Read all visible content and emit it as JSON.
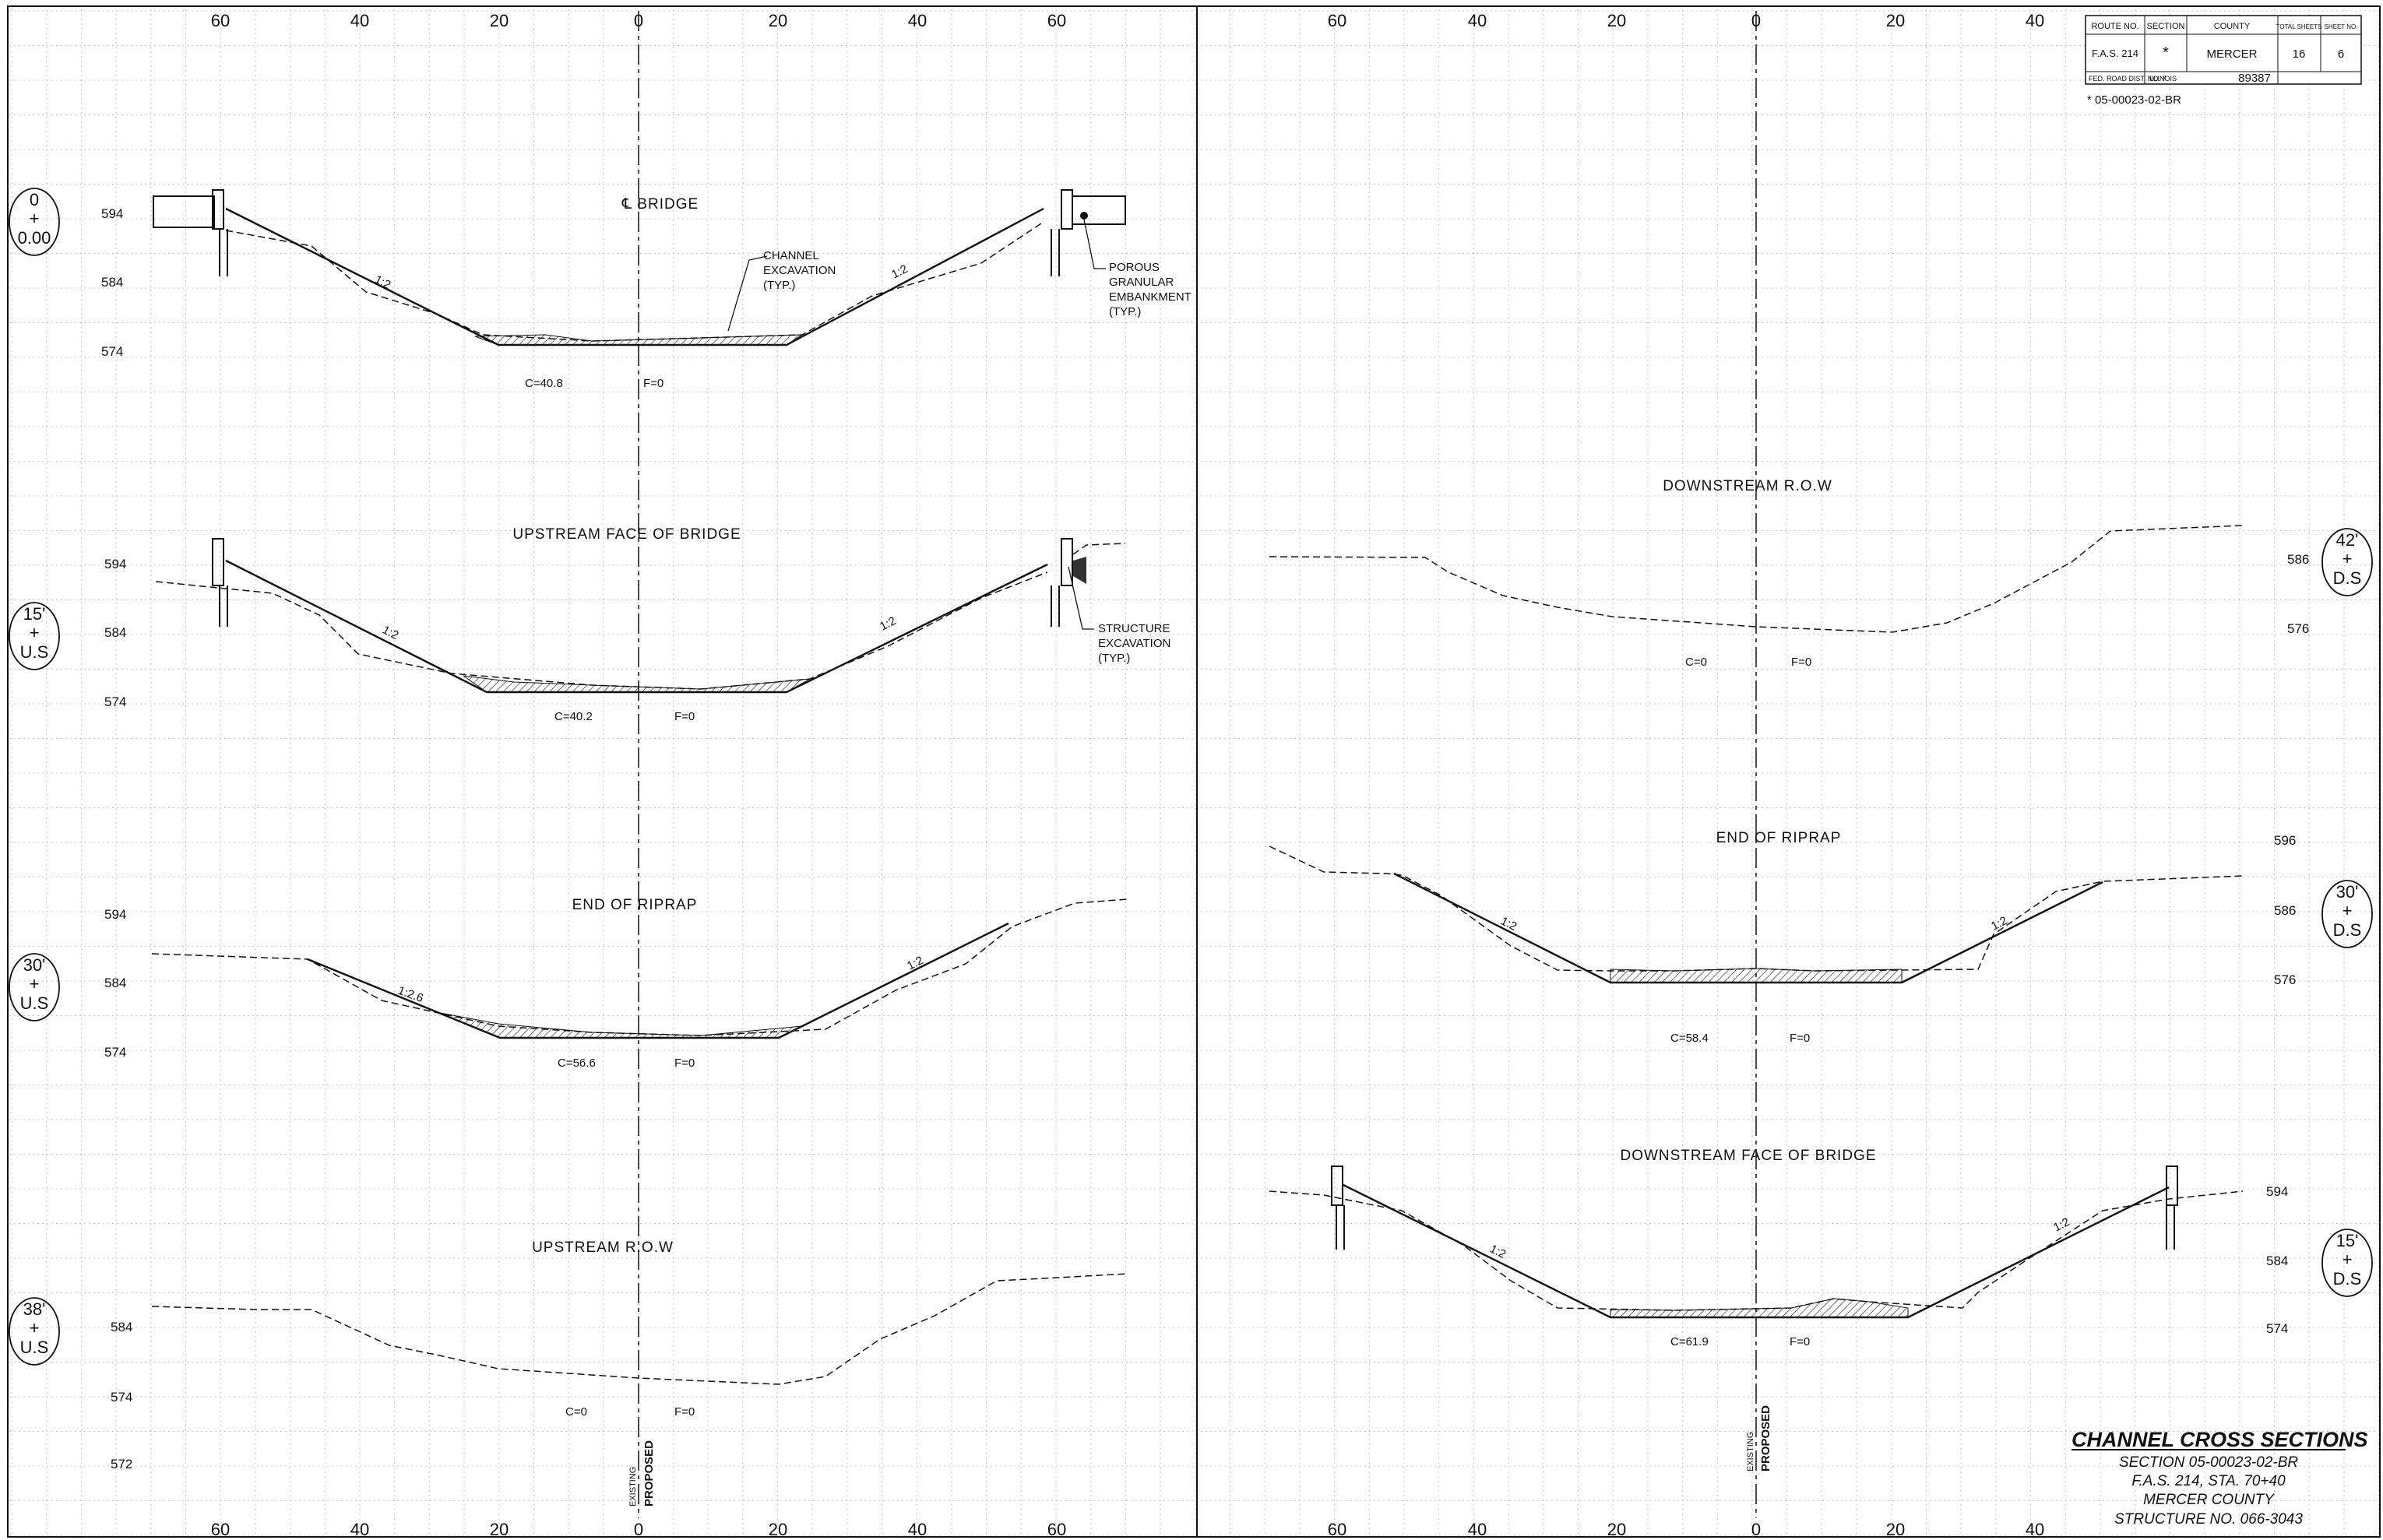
{
  "offset_axis": {
    "left_panel_ticks": [
      "60",
      "40",
      "20",
      "0",
      "20",
      "40",
      "60"
    ],
    "right_panel_ticks": [
      "60",
      "40",
      "20",
      "0",
      "20",
      "40"
    ]
  },
  "sections": [
    {
      "id": "bridge-cl",
      "title": "℄ BRIDGE",
      "station": [
        "0",
        "+",
        "0.00"
      ],
      "cut": "C=40.8",
      "fill": "F=0",
      "elevations": [
        "594",
        "584",
        "574"
      ],
      "slope_labels": [
        "1:2",
        "1:2"
      ],
      "notes": [
        "CHANNEL EXCAVATION (TYP.)",
        "POROUS GRANULAR EMBANKMENT (TYP.)"
      ]
    },
    {
      "id": "upstream-face",
      "title": "UPSTREAM FACE OF BRIDGE",
      "station": [
        "15'",
        "+",
        "U.S"
      ],
      "cut": "C=40.2",
      "fill": "F=0",
      "elevations": [
        "594",
        "584",
        "574"
      ],
      "slope_labels": [
        "1:2",
        "1:2"
      ],
      "notes": [
        "STRUCTURE EXCAVATION (TYP.)"
      ]
    },
    {
      "id": "end-riprap-us",
      "title": "END OF RIPRAP",
      "station": [
        "30'",
        "+",
        "U.S"
      ],
      "cut": "C=56.6",
      "fill": "F=0",
      "elevations": [
        "594",
        "584",
        "574"
      ],
      "slope_labels": [
        "1:2.6",
        "1:2"
      ]
    },
    {
      "id": "upstream-row",
      "title": "UPSTREAM R.O.W",
      "station": [
        "38'",
        "+",
        "U.S"
      ],
      "cut": "C=0",
      "fill": "F=0",
      "elevations": [
        "584",
        "574",
        "572"
      ]
    },
    {
      "id": "downstream-row",
      "title": "DOWNSTREAM R.O.W",
      "station": [
        "42'",
        "+",
        "D.S"
      ],
      "cut": "C=0",
      "fill": "F=0",
      "elevations": [
        "586",
        "576"
      ]
    },
    {
      "id": "end-riprap-ds",
      "title": "END OF RIPRAP",
      "station": [
        "30'",
        "+",
        "D.S"
      ],
      "cut": "C=58.4",
      "fill": "F=0",
      "elevations": [
        "596",
        "586",
        "576"
      ],
      "slope_labels": [
        "1:2",
        "1:2"
      ]
    },
    {
      "id": "downstream-face",
      "title": "DOWNSTREAM FACE OF BRIDGE",
      "station": [
        "15'",
        "+",
        "D.S"
      ],
      "cut": "C=61.9",
      "fill": "F=0",
      "elevations": [
        "594",
        "584",
        "574"
      ],
      "slope_labels": [
        "1:2",
        "1:2"
      ]
    }
  ],
  "centerline_labels": {
    "existing": "EXISTING",
    "proposed": "PROPOSED"
  },
  "title_block": {
    "headers": [
      "ROUTE NO.",
      "SECTION",
      "COUNTY",
      "TOTAL SHEETS",
      "SHEET NO."
    ],
    "route": "F.A.S. 214",
    "section": "*",
    "county": "MERCER",
    "total_sheets": "16",
    "sheet_no": "6",
    "fed_road": "FED. ROAD DIST. NO. 7",
    "state": "ILLINOIS",
    "contract": "89387",
    "section_note": "* 05-00023-02-BR"
  },
  "drawing_title": {
    "title": "CHANNEL CROSS SECTIONS",
    "lines": [
      "SECTION 05-00023-02-BR",
      "F.A.S. 214, STA. 70+40",
      "MERCER COUNTY",
      "STRUCTURE NO. 066-3043"
    ]
  }
}
